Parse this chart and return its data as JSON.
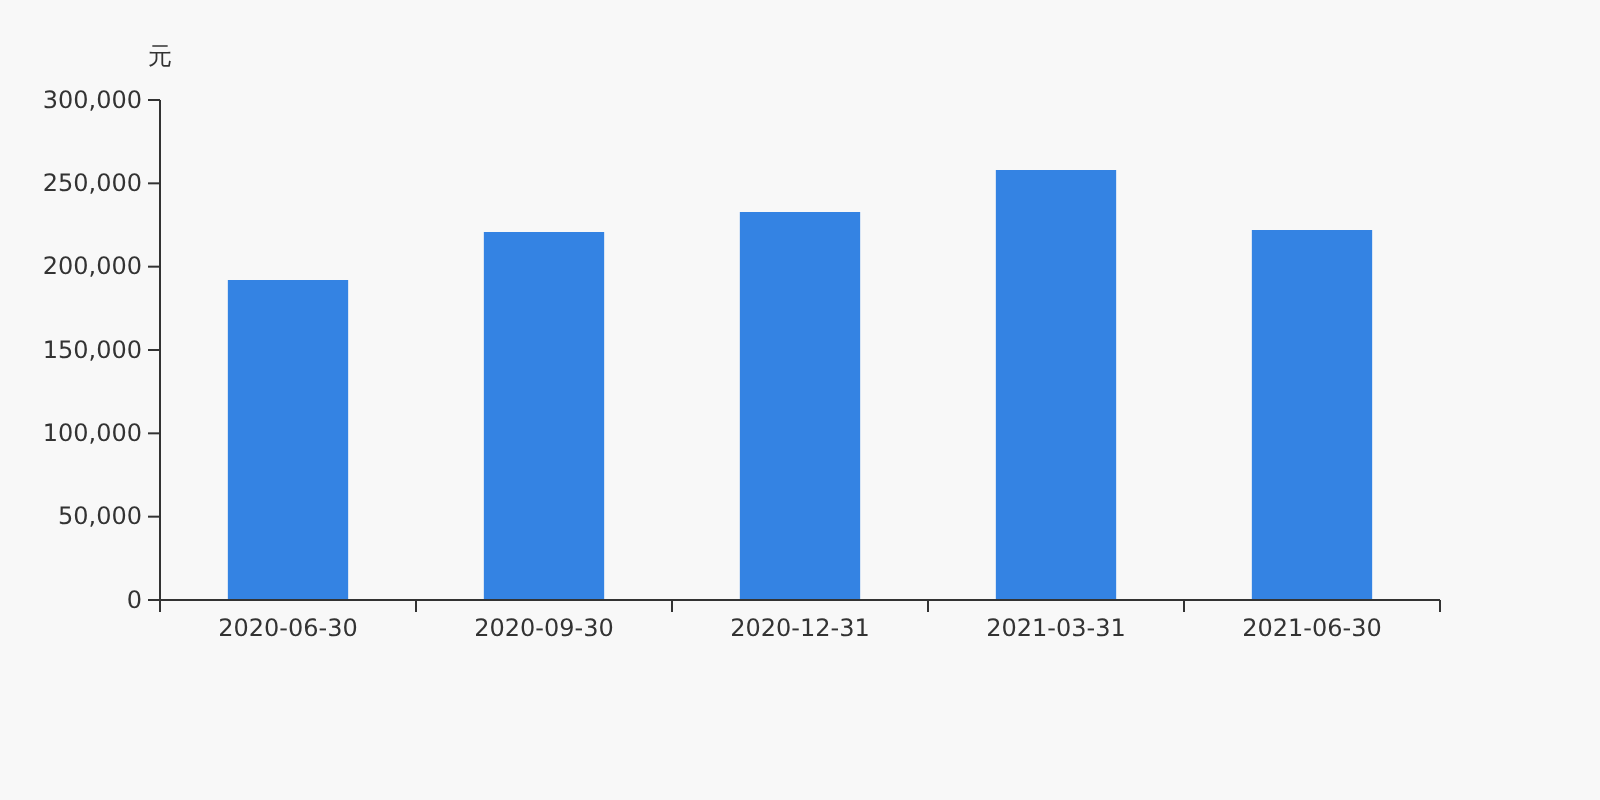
{
  "chart_data": {
    "type": "bar",
    "ylabel": "元",
    "categories": [
      "2020-06-30",
      "2020-09-30",
      "2020-12-31",
      "2021-03-31",
      "2021-06-30"
    ],
    "values": [
      192000,
      220800,
      232800,
      258000,
      222000
    ],
    "color": "#3483e3",
    "ylim": [
      0,
      300000
    ],
    "yticks": [
      {
        "value": 0,
        "label": "0"
      },
      {
        "value": 50000,
        "label": "50,000"
      },
      {
        "value": 100000,
        "label": "100,000"
      },
      {
        "value": 150000,
        "label": "150,000"
      },
      {
        "value": 200000,
        "label": "200,000"
      },
      {
        "value": 250000,
        "label": "250,000"
      },
      {
        "value": 300000,
        "label": "300,000"
      }
    ],
    "grid": false
  }
}
